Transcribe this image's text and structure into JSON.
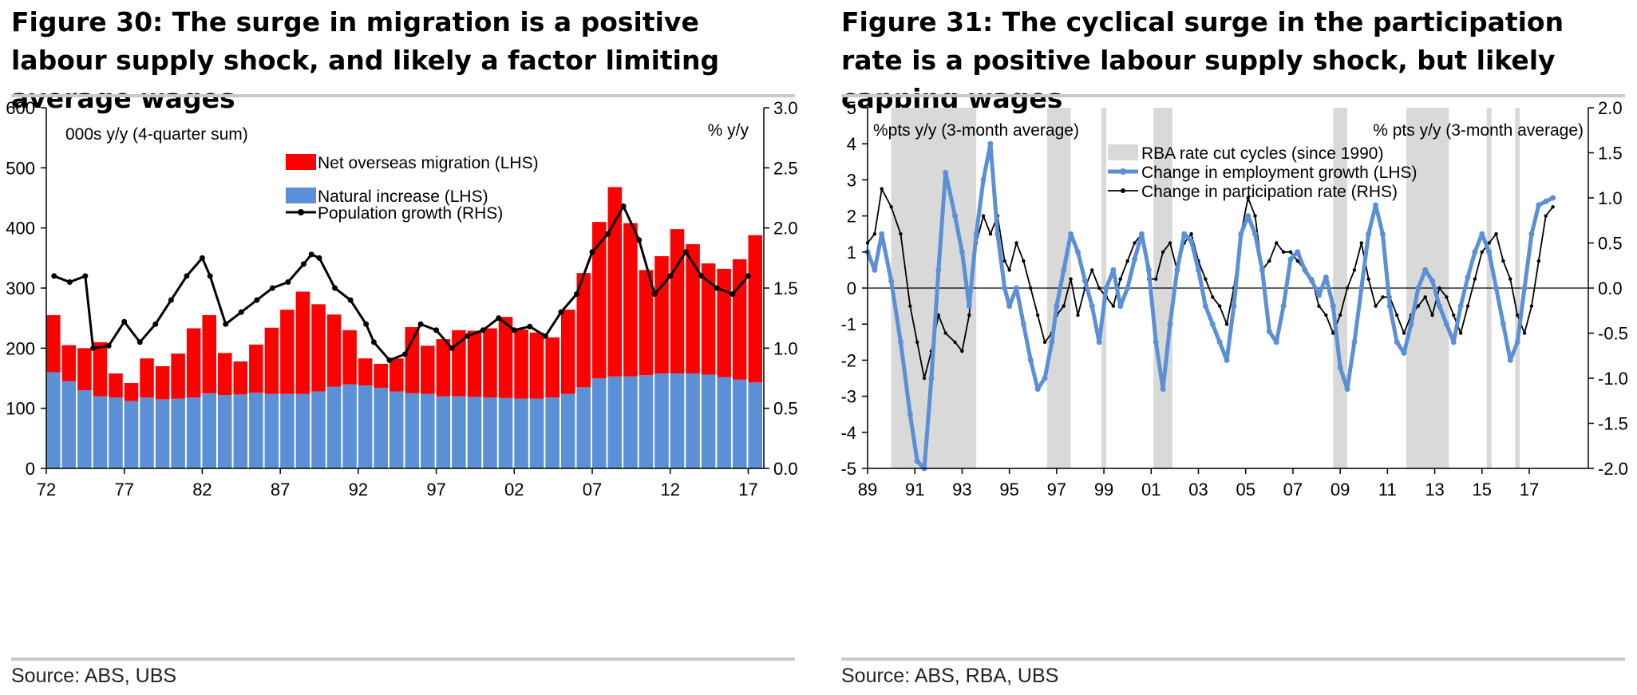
{
  "figures": [
    {
      "title": "Figure 30: The surge in migration is a positive labour supply shock, and likely a factor limiting average wages",
      "source": "Source:  ABS, UBS"
    },
    {
      "title": "Figure 31: The cyclical surge in the participation rate is a positive labour supply shock, but likely capping wages",
      "source": "Source:  ABS, RBA, UBS"
    }
  ],
  "chart_data": [
    {
      "type": "bar",
      "stacked": true,
      "left_axis_note": "000s y/y (4-quarter sum)",
      "right_axis_note": "% y/y",
      "ylim_left": [
        0,
        600
      ],
      "ylim_right": [
        0,
        3
      ],
      "yticks_left": [
        "0",
        "100",
        "200",
        "300",
        "400",
        "500",
        "600"
      ],
      "yticks_right": [
        "0.0",
        "0.5",
        "1.0",
        "1.5",
        "2.0",
        "2.5",
        "3.0"
      ],
      "xlim": [
        1972,
        2018
      ],
      "xticks": [
        "72",
        "77",
        "82",
        "87",
        "92",
        "97",
        "02",
        "07",
        "12",
        "17"
      ],
      "legend_position": "top-center",
      "series": [
        {
          "name": "Net overseas migration (LHS)",
          "kind": "bar",
          "color": "#ff0000",
          "axis": "left",
          "x": [
            1972,
            1973,
            1974,
            1975,
            1976,
            1977,
            1978,
            1979,
            1980,
            1981,
            1982,
            1983,
            1984,
            1985,
            1986,
            1987,
            1988,
            1989,
            1990,
            1991,
            1992,
            1993,
            1994,
            1995,
            1996,
            1997,
            1998,
            1999,
            2000,
            2001,
            2002,
            2003,
            2004,
            2005,
            2006,
            2007,
            2008,
            2009,
            2010,
            2011,
            2012,
            2013,
            2014,
            2015,
            2016,
            2017
          ],
          "values": [
            95,
            60,
            70,
            90,
            40,
            30,
            65,
            55,
            75,
            115,
            130,
            70,
            55,
            80,
            110,
            140,
            170,
            145,
            120,
            90,
            45,
            40,
            55,
            110,
            80,
            95,
            110,
            110,
            115,
            135,
            115,
            110,
            100,
            140,
            190,
            260,
            315,
            255,
            175,
            195,
            240,
            215,
            185,
            180,
            200,
            245
          ]
        },
        {
          "name": "Natural increase (LHS)",
          "kind": "bar",
          "color": "#5b8fd6",
          "axis": "left",
          "x": [
            1972,
            1973,
            1974,
            1975,
            1976,
            1977,
            1978,
            1979,
            1980,
            1981,
            1982,
            1983,
            1984,
            1985,
            1986,
            1987,
            1988,
            1989,
            1990,
            1991,
            1992,
            1993,
            1994,
            1995,
            1996,
            1997,
            1998,
            1999,
            2000,
            2001,
            2002,
            2003,
            2004,
            2005,
            2006,
            2007,
            2008,
            2009,
            2010,
            2011,
            2012,
            2013,
            2014,
            2015,
            2016,
            2017
          ],
          "values": [
            160,
            145,
            130,
            120,
            118,
            112,
            118,
            115,
            116,
            118,
            125,
            122,
            123,
            126,
            124,
            124,
            124,
            128,
            136,
            140,
            138,
            134,
            128,
            125,
            124,
            120,
            120,
            119,
            118,
            117,
            116,
            116,
            118,
            124,
            135,
            150,
            153,
            153,
            155,
            158,
            158,
            158,
            156,
            152,
            148,
            143
          ]
        },
        {
          "name": "Population growth (RHS)",
          "kind": "line",
          "color": "#000000",
          "axis": "right",
          "x": [
            1972.5,
            1973.5,
            1974.5,
            1975.0,
            1976.0,
            1977.0,
            1978.0,
            1979.0,
            1980.0,
            1981.0,
            1982.0,
            1982.5,
            1983.5,
            1984.5,
            1985.5,
            1986.5,
            1987.5,
            1988.5,
            1989.0,
            1989.5,
            1990.5,
            1991.5,
            1992.5,
            1993.0,
            1994.0,
            1995.0,
            1996.0,
            1997.0,
            1998.0,
            1999.0,
            2000.0,
            2001.0,
            2002.0,
            2003.0,
            2004.0,
            2005.0,
            2006.0,
            2007.0,
            2008.0,
            2009.0,
            2010.0,
            2011.0,
            2012.0,
            2013.0,
            2014.0,
            2015.0,
            2016.0,
            2017.0
          ],
          "values": [
            1.6,
            1.55,
            1.6,
            1.0,
            1.02,
            1.22,
            1.05,
            1.2,
            1.4,
            1.6,
            1.75,
            1.6,
            1.2,
            1.3,
            1.4,
            1.5,
            1.55,
            1.7,
            1.78,
            1.75,
            1.5,
            1.4,
            1.2,
            1.05,
            0.9,
            0.95,
            1.2,
            1.15,
            1.0,
            1.1,
            1.15,
            1.25,
            1.15,
            1.18,
            1.1,
            1.3,
            1.45,
            1.8,
            1.95,
            2.18,
            1.9,
            1.45,
            1.6,
            1.8,
            1.6,
            1.5,
            1.45,
            1.6
          ]
        }
      ]
    },
    {
      "type": "line",
      "left_axis_note": "%pts y/y (3-month average)",
      "right_axis_note": "% pts y/y (3-month average)",
      "ylim_left": [
        -5,
        5
      ],
      "ylim_right": [
        -2,
        2
      ],
      "yticks_left": [
        "-5",
        "-4",
        "-3",
        "-2",
        "-1",
        "0",
        "1",
        "2",
        "3",
        "4",
        "5"
      ],
      "yticks_right": [
        "-2.0",
        "-1.5",
        "-1.0",
        "-0.5",
        "0.0",
        "0.5",
        "1.0",
        "1.5",
        "2.0"
      ],
      "xlim": [
        1989,
        2019.5
      ],
      "xticks": [
        "89",
        "91",
        "93",
        "95",
        "97",
        "99",
        "01",
        "03",
        "05",
        "07",
        "09",
        "11",
        "13",
        "15",
        "17"
      ],
      "legend_position": "top-center",
      "shaded_periods_name": "RBA rate cut cycles (since 1990)",
      "shaded_periods": [
        [
          1990.0,
          1993.6
        ],
        [
          1996.6,
          1997.6
        ],
        [
          1998.9,
          1999.0
        ],
        [
          2001.1,
          2001.9
        ],
        [
          2008.7,
          2009.3
        ],
        [
          2011.8,
          2013.6
        ],
        [
          2015.2,
          2015.3
        ],
        [
          2016.4,
          2016.6
        ]
      ],
      "series": [
        {
          "name": "Change in employment growth (LHS)",
          "color": "#5b8fd6",
          "axis": "left",
          "x": [
            1989.0,
            1989.3,
            1989.6,
            1990.0,
            1990.4,
            1990.8,
            1991.1,
            1991.4,
            1991.7,
            1992.0,
            1992.3,
            1992.7,
            1993.0,
            1993.3,
            1993.6,
            1993.9,
            1994.2,
            1994.5,
            1994.8,
            1995.0,
            1995.3,
            1995.6,
            1995.9,
            1996.2,
            1996.5,
            1996.8,
            1997.0,
            1997.3,
            1997.6,
            1997.9,
            1998.2,
            1998.5,
            1998.8,
            1999.1,
            1999.4,
            1999.7,
            2000.0,
            2000.3,
            2000.6,
            2000.9,
            2001.2,
            2001.5,
            2001.8,
            2002.1,
            2002.4,
            2002.7,
            2003.0,
            2003.3,
            2003.6,
            2003.9,
            2004.2,
            2004.5,
            2004.8,
            2005.1,
            2005.4,
            2005.7,
            2006.0,
            2006.3,
            2006.6,
            2006.9,
            2007.2,
            2007.5,
            2007.8,
            2008.1,
            2008.4,
            2008.7,
            2009.0,
            2009.3,
            2009.6,
            2009.9,
            2010.2,
            2010.5,
            2010.8,
            2011.1,
            2011.4,
            2011.7,
            2012.0,
            2012.3,
            2012.6,
            2012.9,
            2013.2,
            2013.5,
            2013.8,
            2014.1,
            2014.4,
            2014.7,
            2015.0,
            2015.3,
            2015.6,
            2015.9,
            2016.2,
            2016.5,
            2016.8,
            2017.1,
            2017.4,
            2017.7,
            2018.0
          ],
          "values": [
            1.0,
            0.5,
            1.5,
            0.2,
            -1.5,
            -3.5,
            -4.8,
            -5.0,
            -2.5,
            0.5,
            3.2,
            2.0,
            1.0,
            -0.5,
            1.5,
            3.0,
            4.0,
            1.5,
            0.0,
            -0.5,
            0.0,
            -1.0,
            -2.0,
            -2.8,
            -2.5,
            -1.5,
            -0.5,
            0.5,
            1.5,
            1.0,
            0.2,
            -0.5,
            -1.5,
            0.0,
            0.5,
            -0.5,
            0.0,
            0.8,
            1.5,
            0.5,
            -1.5,
            -2.8,
            -1.0,
            0.5,
            1.5,
            1.3,
            0.5,
            -0.5,
            -1.0,
            -1.5,
            -2.0,
            -0.5,
            1.5,
            2.0,
            1.5,
            0.5,
            -1.2,
            -1.5,
            -0.5,
            0.8,
            1.0,
            0.5,
            0.2,
            -0.2,
            0.3,
            -0.5,
            -2.2,
            -2.8,
            -1.5,
            0.0,
            1.5,
            2.3,
            1.5,
            -0.5,
            -1.5,
            -1.8,
            -1.0,
            0.0,
            0.5,
            0.2,
            -0.5,
            -1.0,
            -1.5,
            -0.5,
            0.3,
            1.0,
            1.5,
            1.0,
            0.0,
            -1.0,
            -2.0,
            -1.5,
            0.0,
            1.5,
            2.3,
            2.4,
            2.5
          ]
        },
        {
          "name": "Change in participation rate (RHS)",
          "color": "#000000",
          "axis": "right",
          "x": [
            1989.0,
            1989.3,
            1989.6,
            1990.0,
            1990.4,
            1990.8,
            1991.1,
            1991.4,
            1991.7,
            1992.0,
            1992.3,
            1992.7,
            1993.0,
            1993.3,
            1993.6,
            1993.9,
            1994.2,
            1994.5,
            1994.8,
            1995.0,
            1995.3,
            1995.6,
            1995.9,
            1996.2,
            1996.5,
            1996.8,
            1997.0,
            1997.3,
            1997.6,
            1997.9,
            1998.2,
            1998.5,
            1998.8,
            1999.1,
            1999.4,
            1999.7,
            2000.0,
            2000.3,
            2000.6,
            2000.9,
            2001.2,
            2001.5,
            2001.8,
            2002.1,
            2002.4,
            2002.7,
            2003.0,
            2003.3,
            2003.6,
            2003.9,
            2004.2,
            2004.5,
            2004.8,
            2005.1,
            2005.4,
            2005.7,
            2006.0,
            2006.3,
            2006.6,
            2006.9,
            2007.2,
            2007.5,
            2007.8,
            2008.1,
            2008.4,
            2008.7,
            2009.0,
            2009.3,
            2009.6,
            2009.9,
            2010.2,
            2010.5,
            2010.8,
            2011.1,
            2011.4,
            2011.7,
            2012.0,
            2012.3,
            2012.6,
            2012.9,
            2013.2,
            2013.5,
            2013.8,
            2014.1,
            2014.4,
            2014.7,
            2015.0,
            2015.3,
            2015.6,
            2015.9,
            2016.2,
            2016.5,
            2016.8,
            2017.1,
            2017.4,
            2017.7,
            2018.0
          ],
          "values": [
            0.5,
            0.6,
            1.1,
            0.9,
            0.6,
            -0.2,
            -0.6,
            -1.0,
            -0.7,
            -0.3,
            -0.5,
            -0.6,
            -0.7,
            -0.3,
            0.5,
            0.8,
            0.6,
            0.8,
            0.3,
            0.2,
            0.5,
            0.3,
            0.0,
            -0.3,
            -0.6,
            -0.5,
            -0.3,
            -0.2,
            0.1,
            -0.3,
            0.0,
            0.2,
            0.0,
            -0.1,
            -0.2,
            0.1,
            0.3,
            0.5,
            0.6,
            0.1,
            0.1,
            0.4,
            0.5,
            0.2,
            0.5,
            0.6,
            0.3,
            0.1,
            -0.1,
            -0.2,
            -0.4,
            0.0,
            0.6,
            1.0,
            0.8,
            0.2,
            0.3,
            0.5,
            0.4,
            0.4,
            0.3,
            0.2,
            0.1,
            -0.2,
            -0.3,
            -0.5,
            -0.3,
            0.0,
            0.2,
            0.5,
            0.1,
            -0.2,
            -0.1,
            -0.1,
            -0.3,
            -0.5,
            -0.3,
            -0.2,
            -0.1,
            -0.3,
            0.0,
            -0.1,
            -0.3,
            -0.5,
            -0.2,
            0.1,
            0.4,
            0.5,
            0.6,
            0.3,
            0.1,
            -0.3,
            -0.5,
            -0.2,
            0.3,
            0.8,
            0.9
          ]
        }
      ]
    }
  ]
}
